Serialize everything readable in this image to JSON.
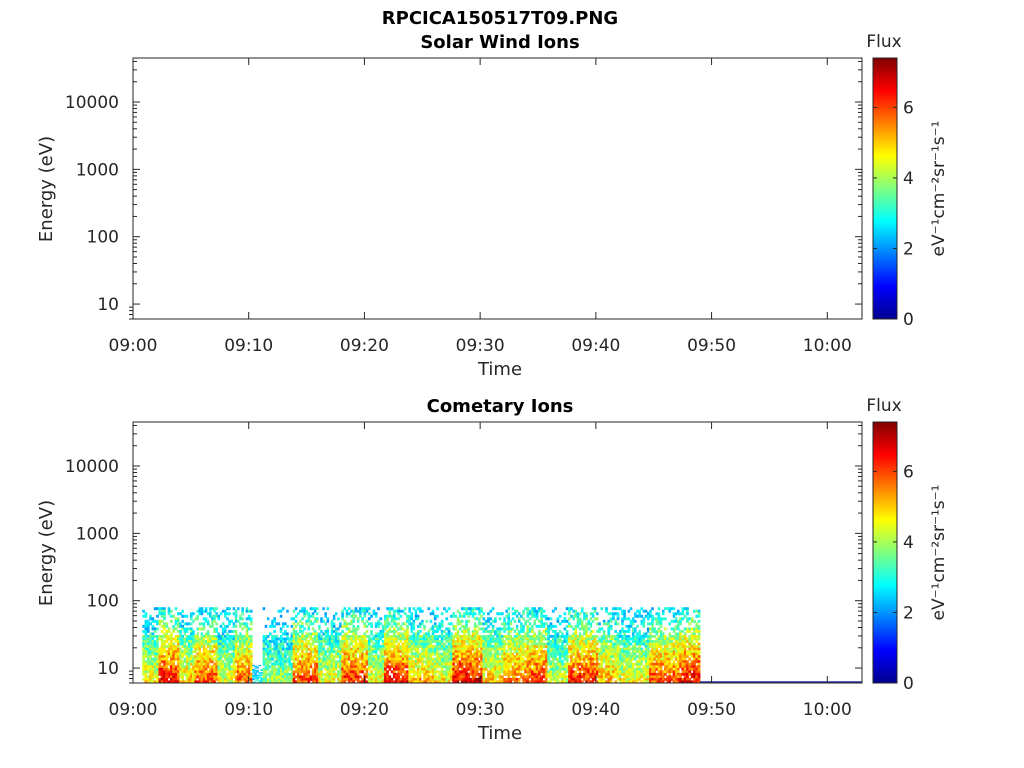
{
  "figure_title": "RPCICA150517T09.PNG",
  "colorbar": {
    "label": "Flux",
    "unit": "eV⁻¹cm⁻²sr⁻¹s⁻¹",
    "ticks": [
      "0",
      "2",
      "4",
      "6"
    ],
    "range": [
      0,
      7.4
    ],
    "colormap": "jet",
    "colors": [
      "#00008F",
      "#0000FF",
      "#00FFFF",
      "#FFFF00",
      "#FF0000",
      "#800000"
    ]
  },
  "chart_data": [
    {
      "type": "heatmap",
      "title": "Solar Wind Ions",
      "xlabel": "Time",
      "ylabel": "Energy (eV)",
      "x_ticks": [
        "09:00",
        "09:10",
        "09:20",
        "09:30",
        "09:40",
        "09:50",
        "10:00"
      ],
      "x_range_minutes": [
        0,
        63
      ],
      "y_scale": "log",
      "y_ticks": [
        "10",
        "100",
        "1000",
        "10000"
      ],
      "y_range": [
        6,
        45000
      ],
      "segments": []
    },
    {
      "type": "heatmap",
      "title": "Cometary Ions",
      "xlabel": "Time",
      "ylabel": "Energy (eV)",
      "x_ticks": [
        "09:00",
        "09:10",
        "09:20",
        "09:30",
        "09:40",
        "09:50",
        "10:00"
      ],
      "x_range_minutes": [
        0,
        63
      ],
      "y_scale": "log",
      "y_ticks": [
        "10",
        "100",
        "1000",
        "10000"
      ],
      "y_range": [
        6,
        45000
      ],
      "data_extent_minutes": [
        0.8,
        49
      ],
      "data_energy_range_eV": [
        6,
        80
      ],
      "segments": [
        {
          "start": 0.8,
          "end": 2.2,
          "top": 80,
          "flux": 4.6
        },
        {
          "start": 2.2,
          "end": 4.0,
          "top": 80,
          "flux": 6.3
        },
        {
          "start": 4.0,
          "end": 5.3,
          "top": 80,
          "flux": 4.8
        },
        {
          "start": 5.3,
          "end": 7.3,
          "top": 80,
          "flux": 5.8
        },
        {
          "start": 7.3,
          "end": 8.8,
          "top": 80,
          "flux": 4.3
        },
        {
          "start": 8.8,
          "end": 10.3,
          "top": 80,
          "flux": 5.6
        },
        {
          "start": 10.3,
          "end": 11.2,
          "top": 14,
          "flux": 2.5
        },
        {
          "start": 11.2,
          "end": 13.8,
          "top": 80,
          "flux": 3.8
        },
        {
          "start": 13.8,
          "end": 16.0,
          "top": 80,
          "flux": 5.9
        },
        {
          "start": 16.0,
          "end": 18.0,
          "top": 80,
          "flux": 4.4
        },
        {
          "start": 18.0,
          "end": 20.3,
          "top": 80,
          "flux": 6.1
        },
        {
          "start": 20.3,
          "end": 21.7,
          "top": 80,
          "flux": 4.5
        },
        {
          "start": 21.7,
          "end": 23.8,
          "top": 80,
          "flux": 6.2
        },
        {
          "start": 23.8,
          "end": 26.0,
          "top": 80,
          "flux": 5.0
        },
        {
          "start": 26.0,
          "end": 27.6,
          "top": 80,
          "flux": 4.6
        },
        {
          "start": 27.6,
          "end": 30.2,
          "top": 80,
          "flux": 6.4
        },
        {
          "start": 30.2,
          "end": 32.0,
          "top": 80,
          "flux": 4.8
        },
        {
          "start": 32.0,
          "end": 34.0,
          "top": 80,
          "flux": 5.6
        },
        {
          "start": 34.0,
          "end": 35.8,
          "top": 80,
          "flux": 6.0
        },
        {
          "start": 35.8,
          "end": 37.6,
          "top": 80,
          "flux": 4.2
        },
        {
          "start": 37.6,
          "end": 40.2,
          "top": 80,
          "flux": 6.1
        },
        {
          "start": 40.2,
          "end": 42.0,
          "top": 80,
          "flux": 5.1
        },
        {
          "start": 42.0,
          "end": 44.6,
          "top": 80,
          "flux": 4.5
        },
        {
          "start": 44.6,
          "end": 47.2,
          "top": 80,
          "flux": 5.8
        },
        {
          "start": 47.2,
          "end": 49.0,
          "top": 80,
          "flux": 6.3
        }
      ]
    }
  ]
}
